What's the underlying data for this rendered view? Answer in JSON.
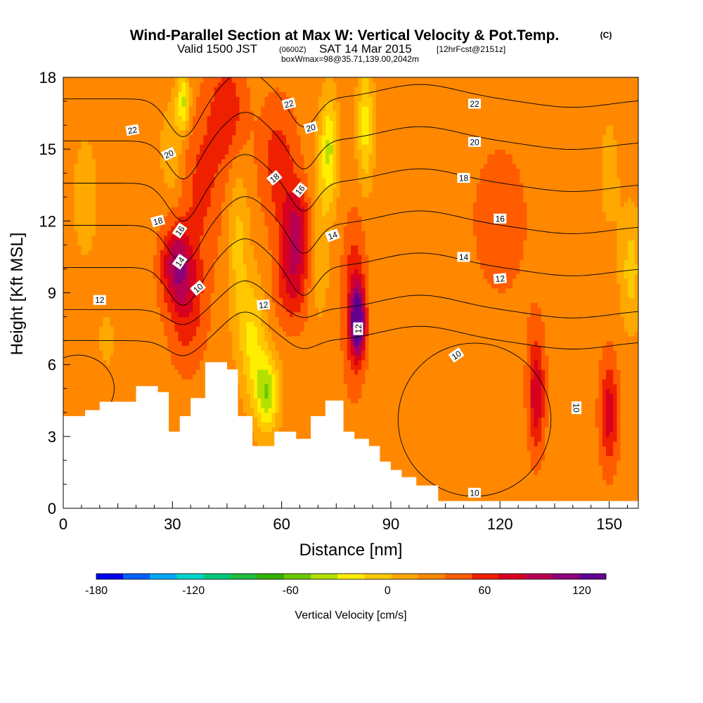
{
  "title": {
    "main": "Wind-Parallel Section at Max W: Vertical Velocity & Pot.Temp.",
    "main_small": "(C)",
    "valid_prefix": "Valid 1500 JST",
    "valid_z": "(0600Z)",
    "valid_date": "SAT 14 Mar 2015",
    "valid_fcst": "[12hrFcst@2151z]",
    "boxwmax": "boxWmax=98@35.71,139.00,2042m"
  },
  "colors": {
    "bands": [
      "#0000ee",
      "#0060ff",
      "#00a8ff",
      "#00d4c8",
      "#00c87a",
      "#20bc40",
      "#34b000",
      "#6ac800",
      "#b4e000",
      "#ffee00",
      "#ffc800",
      "#ffa800",
      "#ff8800",
      "#ff5c00",
      "#ee2000",
      "#d80020",
      "#b80050",
      "#8c0078",
      "#600090"
    ],
    "terrain": "#ffffff"
  },
  "chart_data": {
    "type": "heatmap",
    "xlabel": "Distance [nm]",
    "ylabel": "Height [Kft MSL]",
    "xlim": [
      0,
      158
    ],
    "ylim": [
      0,
      18
    ],
    "xticks": [
      0,
      30,
      60,
      90,
      120,
      150
    ],
    "yticks": [
      0,
      3,
      6,
      9,
      12,
      15,
      18
    ],
    "colorbar": {
      "label": "Vertical Velocity [cm/s]",
      "range": [
        -180,
        135
      ],
      "step": 15,
      "tick_labels": [
        "-180",
        "-120",
        "-60",
        "0",
        "60",
        "120"
      ],
      "tick_values": [
        -180,
        -120,
        -60,
        0,
        60,
        120
      ]
    },
    "terrain_kft": [
      [
        0,
        3.85
      ],
      [
        6,
        3.85
      ],
      [
        6,
        4.1
      ],
      [
        10,
        4.1
      ],
      [
        10,
        4.45
      ],
      [
        20,
        4.45
      ],
      [
        20,
        5.1
      ],
      [
        26,
        5.1
      ],
      [
        26,
        4.85
      ],
      [
        29,
        4.85
      ],
      [
        29,
        3.2
      ],
      [
        32,
        3.2
      ],
      [
        32,
        3.85
      ],
      [
        35,
        3.85
      ],
      [
        35,
        4.6
      ],
      [
        39,
        4.6
      ],
      [
        39,
        6.1
      ],
      [
        45,
        6.1
      ],
      [
        45,
        5.8
      ],
      [
        48,
        5.8
      ],
      [
        48,
        3.85
      ],
      [
        52,
        3.85
      ],
      [
        52,
        2.6
      ],
      [
        58,
        2.6
      ],
      [
        58,
        3.2
      ],
      [
        64,
        3.2
      ],
      [
        64,
        2.9
      ],
      [
        68,
        2.9
      ],
      [
        68,
        3.85
      ],
      [
        72,
        3.85
      ],
      [
        72,
        4.5
      ],
      [
        77,
        4.5
      ],
      [
        77,
        3.2
      ],
      [
        80,
        3.2
      ],
      [
        80,
        2.9
      ],
      [
        84,
        2.9
      ],
      [
        84,
        2.6
      ],
      [
        87,
        2.6
      ],
      [
        87,
        1.95
      ],
      [
        90,
        1.95
      ],
      [
        90,
        1.6
      ],
      [
        93,
        1.6
      ],
      [
        93,
        1.3
      ],
      [
        97,
        1.3
      ],
      [
        97,
        0.95
      ],
      [
        103,
        0.95
      ],
      [
        103,
        0.3
      ],
      [
        158,
        0.3
      ]
    ],
    "wind_cells": [
      {
        "x": 81,
        "y": 7.8,
        "w": 98,
        "sx": 1.8,
        "sy": 1.3
      },
      {
        "x": 80,
        "y": 8.6,
        "w": 40,
        "sx": 3,
        "sy": 3.2
      },
      {
        "x": 31,
        "y": 10.2,
        "w": 55,
        "sx": 4,
        "sy": 1.6
      },
      {
        "x": 34,
        "y": 8.6,
        "w": 35,
        "sx": 5,
        "sy": 2.5
      },
      {
        "x": 64,
        "y": 11.8,
        "w": 50,
        "sx": 4,
        "sy": 1.8
      },
      {
        "x": 63,
        "y": 9.5,
        "w": 40,
        "sx": 4.5,
        "sy": 1.8
      },
      {
        "x": 59,
        "y": 14.5,
        "w": 30,
        "sx": 5,
        "sy": 2.5
      },
      {
        "x": 45,
        "y": 16.5,
        "w": 35,
        "sx": 5,
        "sy": 2.2
      },
      {
        "x": 130,
        "y": 4.8,
        "w": 50,
        "sx": 2.2,
        "sy": 2.4
      },
      {
        "x": 150,
        "y": 4.0,
        "w": 45,
        "sx": 2.5,
        "sy": 2.2
      },
      {
        "x": 110,
        "y": 4.5,
        "w": -8,
        "sx": 7,
        "sy": 3
      },
      {
        "x": 38,
        "y": 13.5,
        "w": 25,
        "sx": 6,
        "sy": 3
      },
      {
        "x": 56,
        "y": 4.8,
        "w": -65,
        "sx": 3.2,
        "sy": 1.6
      },
      {
        "x": 52,
        "y": 7.0,
        "w": -40,
        "sx": 3.5,
        "sy": 2.5
      },
      {
        "x": 48,
        "y": 11,
        "w": -28,
        "sx": 3,
        "sy": 3.5
      },
      {
        "x": 73,
        "y": 15,
        "w": -55,
        "sx": 2.5,
        "sy": 2.2
      },
      {
        "x": 83,
        "y": 16,
        "w": -45,
        "sx": 2.2,
        "sy": 2.5
      },
      {
        "x": 70,
        "y": 11,
        "w": -25,
        "sx": 3,
        "sy": 3
      },
      {
        "x": 33,
        "y": 17,
        "w": -55,
        "sx": 1.8,
        "sy": 1.2
      },
      {
        "x": 30,
        "y": 15,
        "w": -25,
        "sx": 3,
        "sy": 2
      },
      {
        "x": 156,
        "y": 10,
        "w": -30,
        "sx": 3,
        "sy": 2.5
      },
      {
        "x": 150,
        "y": 14,
        "w": -15,
        "sx": 3,
        "sy": 2.5
      },
      {
        "x": 6,
        "y": 13,
        "w": -15,
        "sx": 4,
        "sy": 3
      },
      {
        "x": 12,
        "y": 7,
        "w": -10,
        "sx": 4,
        "sy": 2
      },
      {
        "x": 93,
        "y": 10,
        "w": -5,
        "sx": 6,
        "sy": 3
      },
      {
        "x": 120,
        "y": 12,
        "w": 10,
        "sx": 12,
        "sy": 5
      }
    ],
    "contour_levels": [
      10,
      12,
      14,
      16,
      18,
      20,
      22
    ],
    "contour_labels": [
      {
        "text": "22",
        "x": 19,
        "y": 15.8,
        "rot": -10
      },
      {
        "text": "20",
        "x": 29,
        "y": 14.8,
        "rot": -25
      },
      {
        "text": "18",
        "x": 26,
        "y": 12.0,
        "rot": -15
      },
      {
        "text": "16",
        "x": 32,
        "y": 11.6,
        "rot": -55
      },
      {
        "text": "14",
        "x": 32,
        "y": 10.3,
        "rot": -55
      },
      {
        "text": "10",
        "x": 37,
        "y": 9.2,
        "rot": -40
      },
      {
        "text": "12",
        "x": 10,
        "y": 8.7,
        "rot": 0
      },
      {
        "text": "22",
        "x": 62,
        "y": 16.9,
        "rot": -15
      },
      {
        "text": "20",
        "x": 68,
        "y": 15.9,
        "rot": -15
      },
      {
        "text": "18",
        "x": 58,
        "y": 13.8,
        "rot": -40
      },
      {
        "text": "16",
        "x": 65,
        "y": 13.3,
        "rot": -50
      },
      {
        "text": "14",
        "x": 74,
        "y": 11.4,
        "rot": -20
      },
      {
        "text": "12",
        "x": 55,
        "y": 8.5,
        "rot": -5
      },
      {
        "text": "12",
        "x": 81,
        "y": 7.5,
        "rot": -90
      },
      {
        "text": "22",
        "x": 113,
        "y": 16.9,
        "rot": 0
      },
      {
        "text": "20",
        "x": 113,
        "y": 15.3,
        "rot": 0
      },
      {
        "text": "18",
        "x": 110,
        "y": 13.8,
        "rot": 0
      },
      {
        "text": "16",
        "x": 120,
        "y": 12.1,
        "rot": 0
      },
      {
        "text": "14",
        "x": 110,
        "y": 10.5,
        "rot": 0
      },
      {
        "text": "12",
        "x": 120,
        "y": 9.6,
        "rot": -5
      },
      {
        "text": "10",
        "x": 108,
        "y": 6.4,
        "rot": -35
      },
      {
        "text": "10",
        "x": 141,
        "y": 4.2,
        "rot": 90
      },
      {
        "text": "10",
        "x": 113,
        "y": 0.65,
        "rot": 0
      }
    ]
  }
}
